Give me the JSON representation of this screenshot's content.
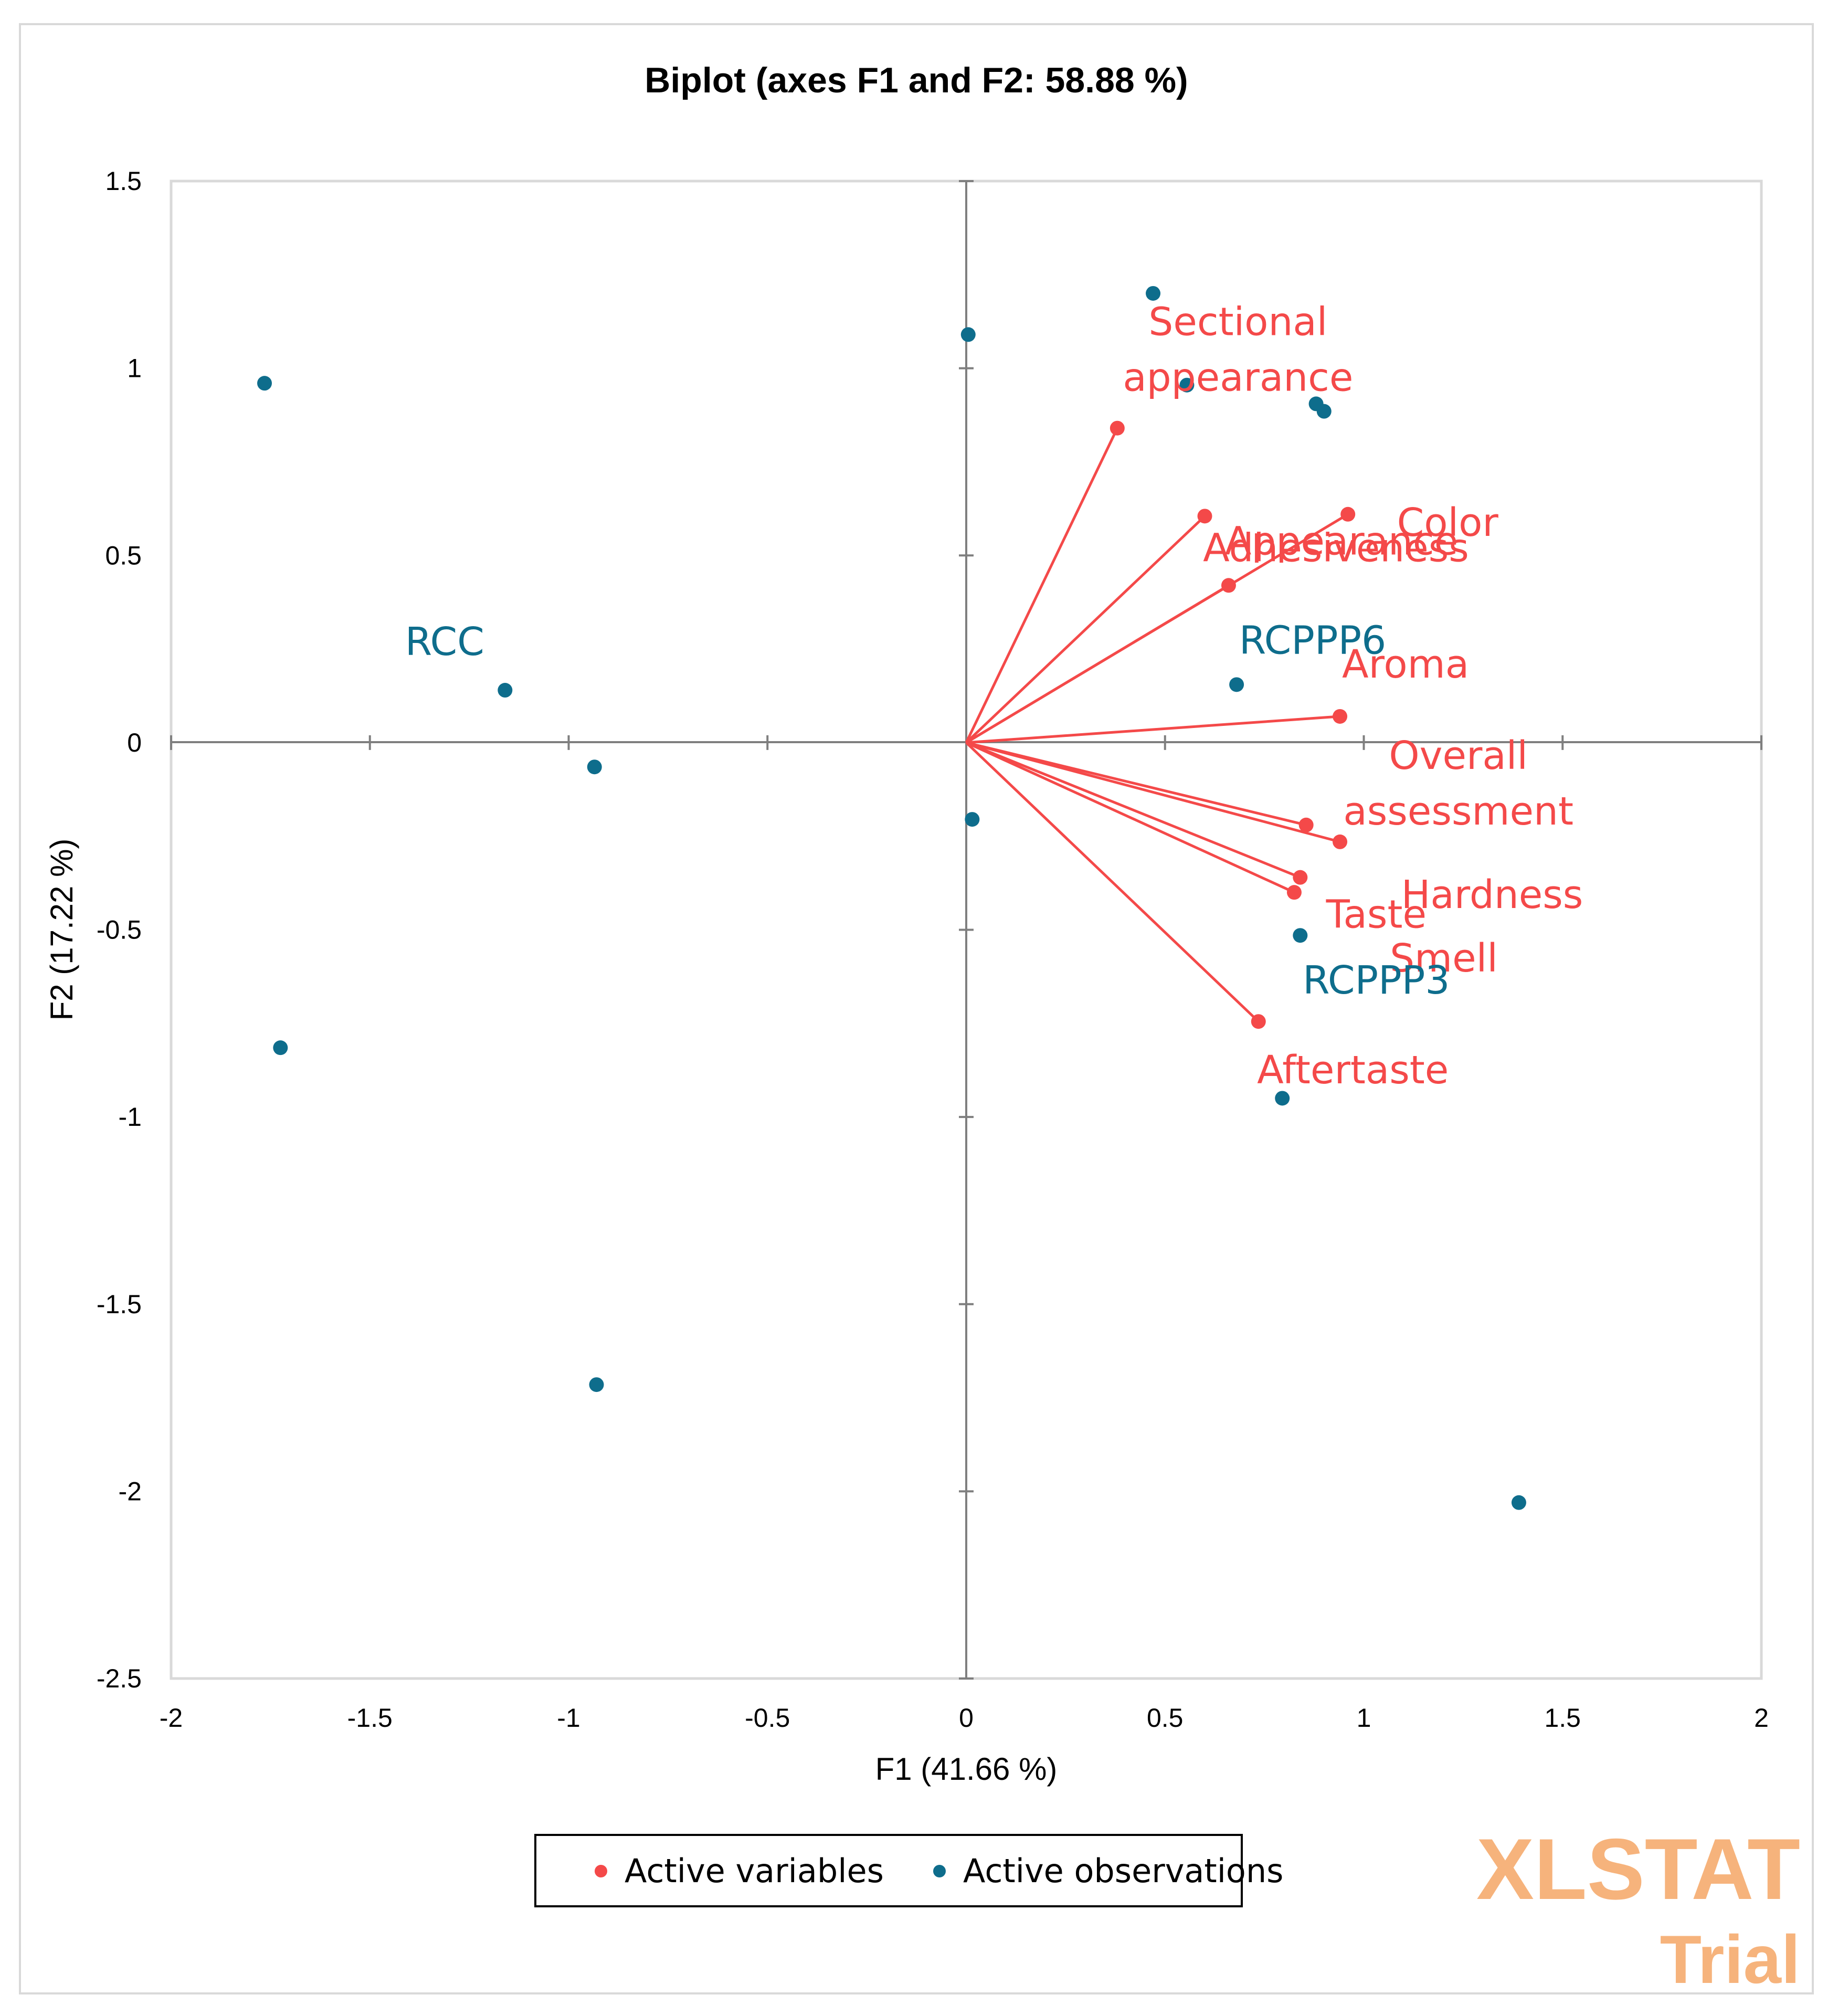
{
  "chart_data": {
    "type": "scatter",
    "title": "Biplot (axes F1 and F2: 58.88 %)",
    "xlabel": "F1 (41.66 %)",
    "ylabel": "F2 (17.22 %)",
    "xlim": [
      -2,
      2
    ],
    "ylim": [
      -2.5,
      1.5
    ],
    "x_ticks": [
      "-2",
      "-1.5",
      "-1",
      "-0.5",
      "0",
      "0.5",
      "1",
      "1.5",
      "2"
    ],
    "y_ticks": [
      "1.5",
      "1",
      "0.5",
      "0",
      "-0.5",
      "-1",
      "-1.5",
      "-2",
      "-2.5"
    ],
    "x_tick_values": [
      -2,
      -1.5,
      -1,
      -0.5,
      0,
      0.5,
      1,
      1.5,
      2
    ],
    "y_tick_values": [
      1.5,
      1,
      0.5,
      0,
      -0.5,
      -1,
      -1.5,
      -2,
      -2.5
    ],
    "grid": false,
    "legend_position": "bottom",
    "series": [
      {
        "name": "Active variables",
        "color": "#f44949",
        "points": [
          {
            "label": "Sectional appearance",
            "label_lines": [
              "Sectional",
              "appearance"
            ],
            "x": 0.38,
            "y": 0.84
          },
          {
            "label": "Adhesiveness",
            "label_lines": [
              "Adhesiveness"
            ],
            "x": 0.6,
            "y": 0.605
          },
          {
            "label": "Color",
            "label_lines": [
              "Color"
            ],
            "x": 0.96,
            "y": 0.61
          },
          {
            "label": "Appearance",
            "label_lines": [
              "Appearance"
            ],
            "x": 0.66,
            "y": 0.42
          },
          {
            "label": "Aroma",
            "label_lines": [
              "Aroma"
            ],
            "x": 0.94,
            "y": 0.07
          },
          {
            "label": "Overall assessment",
            "label_lines": [
              "Overall",
              "assessment"
            ],
            "x": 0.855,
            "y": -0.22
          },
          {
            "label": "Hardness",
            "label_lines": [
              "Hardness"
            ],
            "x": 0.94,
            "y": -0.265
          },
          {
            "label": "Taste",
            "label_lines": [
              "Taste"
            ],
            "x": 0.84,
            "y": -0.36
          },
          {
            "label": "Smell",
            "label_lines": [
              "Smell"
            ],
            "x": 0.825,
            "y": -0.4
          },
          {
            "label": "Aftertaste",
            "label_lines": [
              "Aftertaste"
            ],
            "x": 0.735,
            "y": -0.745
          }
        ]
      },
      {
        "name": "Active observations",
        "color": "#0e6d8c",
        "points": [
          {
            "label": "",
            "x": 0.47,
            "y": 1.2
          },
          {
            "label": "",
            "x": 0.005,
            "y": 1.09
          },
          {
            "label": "",
            "x": -1.765,
            "y": 0.96
          },
          {
            "label": "",
            "x": 0.555,
            "y": 0.955
          },
          {
            "label": "",
            "x": 0.88,
            "y": 0.905
          },
          {
            "label": "",
            "x": 0.9,
            "y": 0.885
          },
          {
            "label": "RCC",
            "x": -1.16,
            "y": 0.14
          },
          {
            "label": "",
            "x": -0.935,
            "y": -0.065
          },
          {
            "label": "",
            "x": 0.015,
            "y": -0.205
          },
          {
            "label": "RCPPP6",
            "x": 0.68,
            "y": 0.155
          },
          {
            "label": "RCPPP3",
            "x": 0.84,
            "y": -0.515
          },
          {
            "label": "",
            "x": -1.725,
            "y": -0.815
          },
          {
            "label": "",
            "x": 0.795,
            "y": -0.95
          },
          {
            "label": "",
            "x": -0.93,
            "y": -1.715
          },
          {
            "label": "",
            "x": 1.39,
            "y": -2.03
          }
        ]
      }
    ],
    "watermark": [
      "XLSTAT",
      "Trial"
    ]
  }
}
